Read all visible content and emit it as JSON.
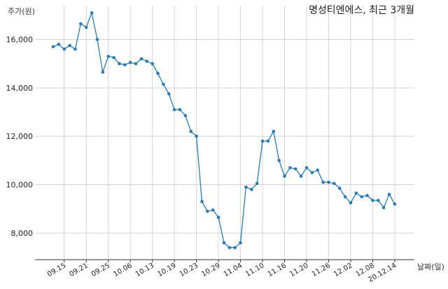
{
  "chart_data": {
    "type": "line",
    "title": "명성티엔에스, 최근 3개월",
    "ylabel": "주가(원)",
    "xlabel": "날짜(일)",
    "color": "#2b7bb0",
    "grid": true,
    "ylim": [
      6900,
      17400
    ],
    "yticks": [
      8000,
      10000,
      12000,
      14000,
      16000
    ],
    "ytick_labels": [
      "8,000",
      "10,000",
      "12,000",
      "14,000",
      "16,000"
    ],
    "xtick_labels": [
      "09.15",
      "09.21",
      "09.25",
      "10.06",
      "10.13",
      "10.19",
      "10.23",
      "10.29",
      "11.04",
      "11.10",
      "11.16",
      "11.20",
      "11.26",
      "12.02",
      "12.08",
      "20.12.14"
    ],
    "xtick_index": [
      2,
      6,
      10,
      14,
      18,
      22,
      26,
      30,
      34,
      38,
      42,
      46,
      50,
      54,
      58,
      62
    ],
    "values": [
      15700,
      15800,
      15600,
      15750,
      15600,
      16650,
      16500,
      17100,
      16000,
      14650,
      15300,
      15250,
      15000,
      14950,
      15050,
      15000,
      15200,
      15100,
      15000,
      14600,
      14150,
      13750,
      13100,
      13100,
      12850,
      12200,
      12000,
      9300,
      8900,
      8950,
      8650,
      7600,
      7400,
      7400,
      7600,
      9900,
      9800,
      10050,
      11800,
      11800,
      12200,
      11000,
      10350,
      10700,
      10650,
      10350,
      10700,
      10500,
      10600,
      10100,
      10100,
      10050,
      9850,
      9500,
      9250,
      9650,
      9500,
      9550,
      9350,
      9350,
      9050,
      9600,
      9200
    ]
  }
}
